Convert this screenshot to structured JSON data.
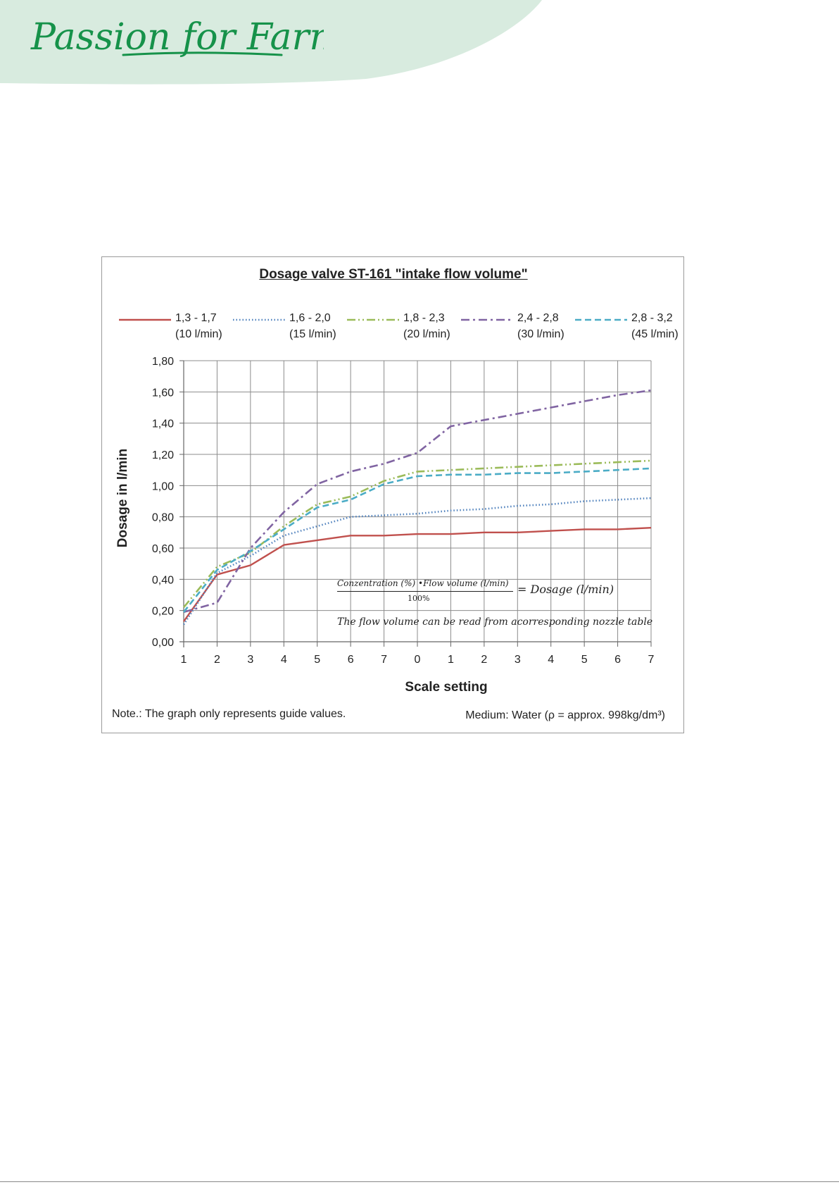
{
  "brand": {
    "logo_text": "Passion for Farming",
    "logo_color": "#16924a",
    "wave_color": "#d8ebdf"
  },
  "chart_data": {
    "type": "line",
    "title": "Dosage valve ST-161  \"intake flow volume\"",
    "xlabel": "Scale setting",
    "ylabel": "Dosage  in l/min",
    "categories": [
      "1",
      "2",
      "3",
      "4",
      "5",
      "6",
      "7",
      "0",
      "1",
      "2",
      "3",
      "4",
      "5",
      "6",
      "7"
    ],
    "y_ticks": [
      "0,00",
      "0,20",
      "0,40",
      "0,60",
      "0,80",
      "1,00",
      "1,20",
      "1,40",
      "1,60",
      "1,80"
    ],
    "ylim": [
      0,
      1.8
    ],
    "y_step": 0.2,
    "grid": true,
    "legend_position": "top",
    "series": [
      {
        "name": "1,3 - 1,7",
        "subtitle": "(10 l/min)",
        "color": "#c0504d",
        "dash": "solid",
        "values": [
          0.13,
          0.43,
          0.49,
          0.62,
          0.65,
          0.68,
          0.68,
          0.69,
          0.69,
          0.7,
          0.7,
          0.71,
          0.72,
          0.72,
          0.73
        ]
      },
      {
        "name": "1,6 - 2,0",
        "subtitle": "(15 l/min)",
        "color": "#4f81bd",
        "dash": "dot",
        "values": [
          0.11,
          0.44,
          0.55,
          0.68,
          0.74,
          0.8,
          0.81,
          0.82,
          0.84,
          0.85,
          0.87,
          0.88,
          0.9,
          0.91,
          0.92
        ]
      },
      {
        "name": "1,8 - 2,3",
        "subtitle": "(20 l/min)",
        "color": "#9bbb59",
        "dash": "dashdotdot",
        "values": [
          0.22,
          0.48,
          0.57,
          0.74,
          0.88,
          0.93,
          1.03,
          1.09,
          1.1,
          1.11,
          1.12,
          1.13,
          1.14,
          1.15,
          1.16
        ]
      },
      {
        "name": "2,4 - 2,8",
        "subtitle": "(30 l/min)",
        "color": "#8064a2",
        "dash": "dashdot",
        "values": [
          0.19,
          0.25,
          0.6,
          0.83,
          1.01,
          1.09,
          1.14,
          1.21,
          1.38,
          1.42,
          1.46,
          1.5,
          1.54,
          1.58,
          1.61
        ]
      },
      {
        "name": "2,8 - 3,2",
        "subtitle": "(45 l/min)",
        "color": "#4bacc6",
        "dash": "dash",
        "values": [
          0.19,
          0.46,
          0.58,
          0.72,
          0.86,
          0.91,
          1.01,
          1.06,
          1.07,
          1.07,
          1.08,
          1.08,
          1.09,
          1.1,
          1.11
        ]
      }
    ]
  },
  "formula": {
    "numerator": "Conzentration (%) •Flow volume (l/min)",
    "denominator": "100%",
    "rhs": "= Dosage (l/min)",
    "note": "The flow volume can be read from acorresponding nozzle table"
  },
  "footnote": {
    "note": "Note.:  The graph only represents guide values.",
    "medium": "Medium:  Water (ρ = approx. 998kg/dm³)"
  }
}
